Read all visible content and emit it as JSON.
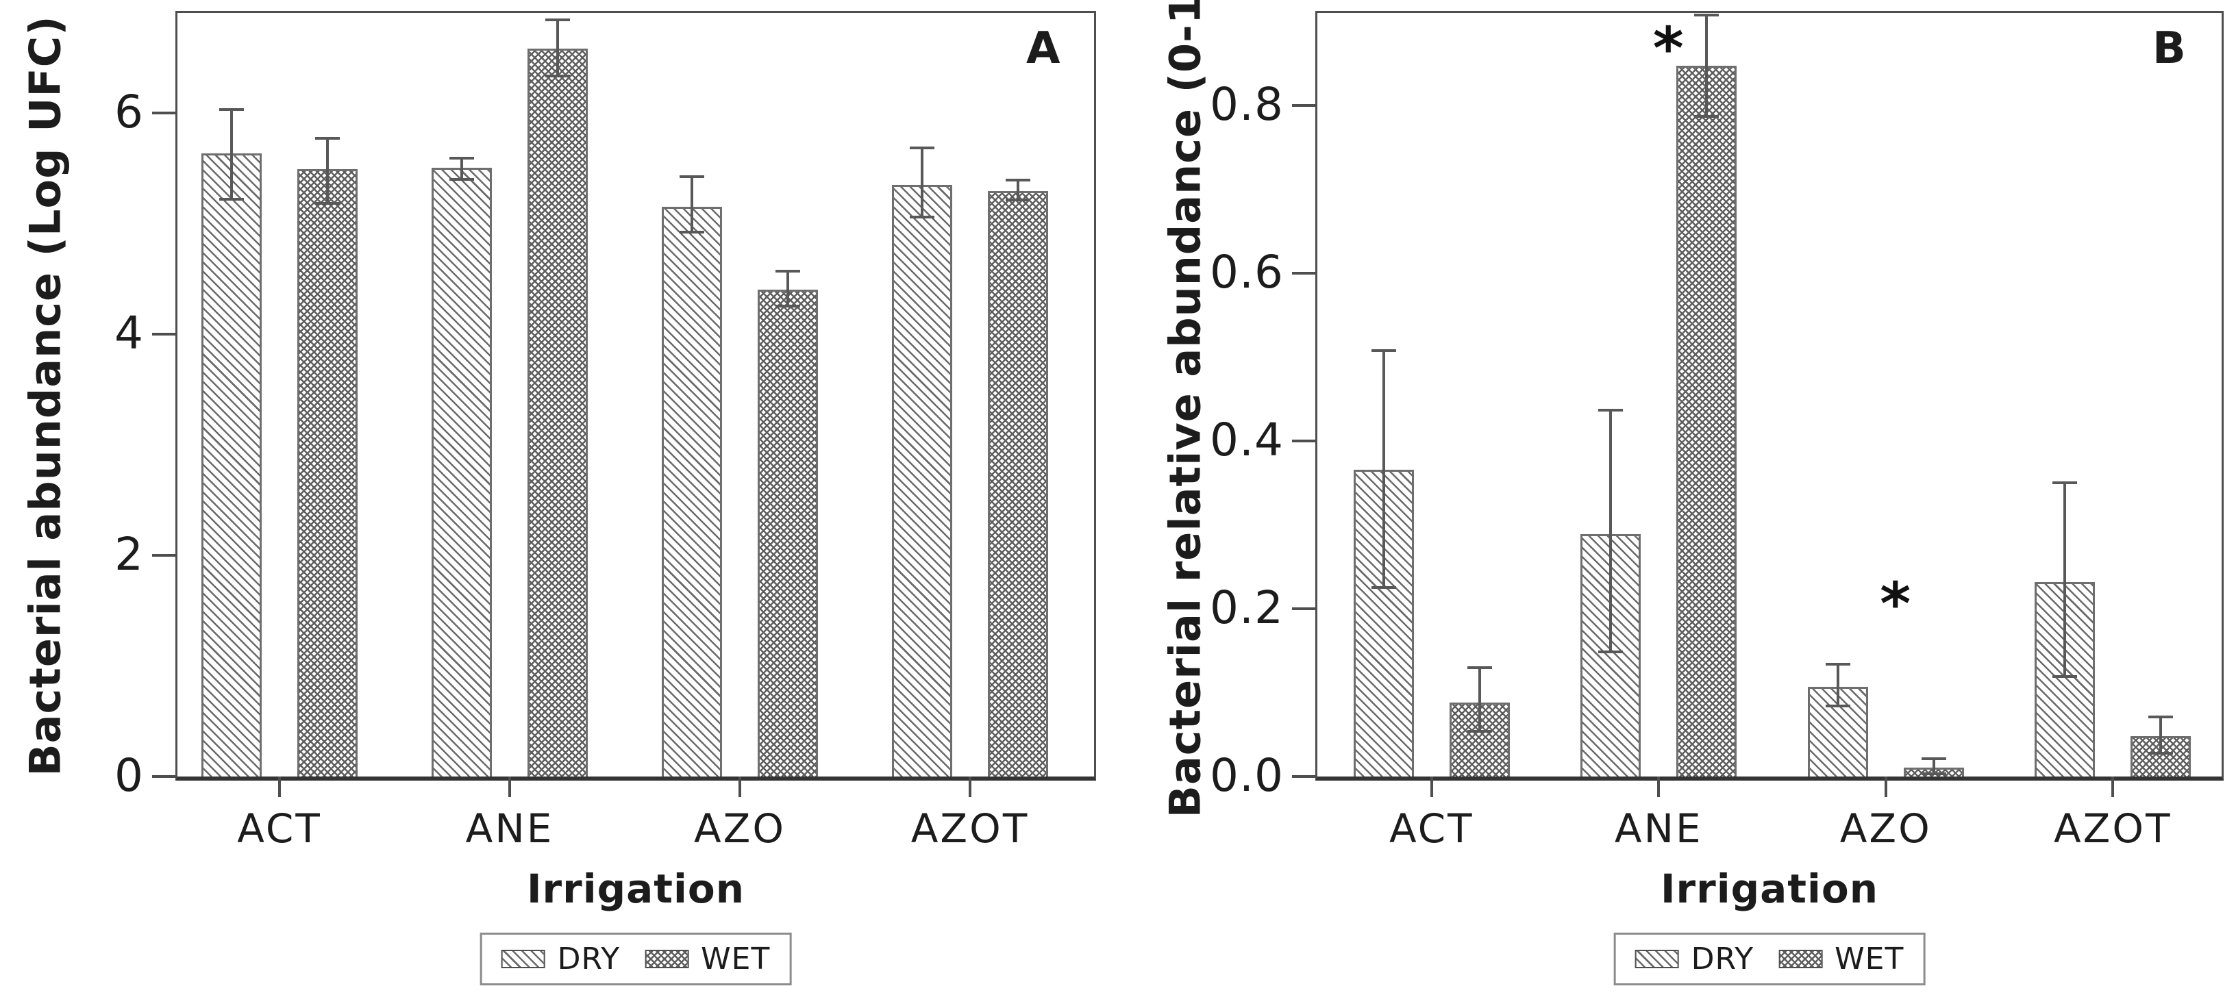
{
  "legend": {
    "dry_label": "DRY",
    "wet_label": "WET"
  },
  "chart_data": [
    {
      "type": "bar",
      "panel_label": "A",
      "xlabel": "Irrigation",
      "ylabel": "Bacterial abundance (Log UFC)",
      "categories": [
        "ACT",
        "ANE",
        "AZO",
        "AZOT"
      ],
      "ylim": [
        0,
        6.92
      ],
      "yticks": [
        0,
        2,
        4,
        6
      ],
      "ytick_labels": [
        "0",
        "2",
        "4",
        "6"
      ],
      "grid": false,
      "legend_position": "bottom",
      "series": [
        {
          "name": "DRY",
          "pattern": "diagonal-hatch",
          "values": [
            5.63,
            5.5,
            5.15,
            5.35
          ],
          "err_low": [
            5.22,
            5.4,
            4.92,
            5.06
          ],
          "err_high": [
            6.03,
            5.59,
            5.42,
            5.68
          ]
        },
        {
          "name": "WET",
          "pattern": "cross-hatch",
          "values": [
            5.49,
            6.58,
            4.4,
            5.29
          ],
          "err_low": [
            5.18,
            6.33,
            4.25,
            5.21
          ],
          "err_high": [
            5.77,
            6.84,
            4.57,
            5.39
          ]
        }
      ],
      "annotations": []
    },
    {
      "type": "bar",
      "panel_label": "B",
      "xlabel": "Irrigation",
      "ylabel": "Bacterial relative abundance (0-1)",
      "categories": [
        "ACT",
        "ANE",
        "AZO",
        "AZOT"
      ],
      "ylim": [
        0,
        0.913
      ],
      "yticks": [
        0,
        0.2,
        0.4,
        0.6,
        0.8
      ],
      "ytick_labels": [
        "0.0",
        "0.2",
        "0.4",
        "0.6",
        "0.8"
      ],
      "grid": false,
      "legend_position": "bottom",
      "series": [
        {
          "name": "DRY",
          "pattern": "diagonal-hatch",
          "values": [
            0.366,
            0.289,
            0.107,
            0.232
          ],
          "err_low": [
            0.225,
            0.149,
            0.084,
            0.119
          ],
          "err_high": [
            0.508,
            0.437,
            0.134,
            0.35
          ]
        },
        {
          "name": "WET",
          "pattern": "cross-hatch",
          "values": [
            0.088,
            0.848,
            0.011,
            0.048
          ],
          "err_low": [
            0.054,
            0.787,
            0.003,
            0.028
          ],
          "err_high": [
            0.13,
            0.908,
            0.021,
            0.071
          ]
        }
      ],
      "annotations": [
        {
          "text": "*",
          "category": "ANE",
          "y": 0.88
        },
        {
          "text": "*",
          "category": "AZO",
          "y": 0.218
        }
      ]
    }
  ]
}
